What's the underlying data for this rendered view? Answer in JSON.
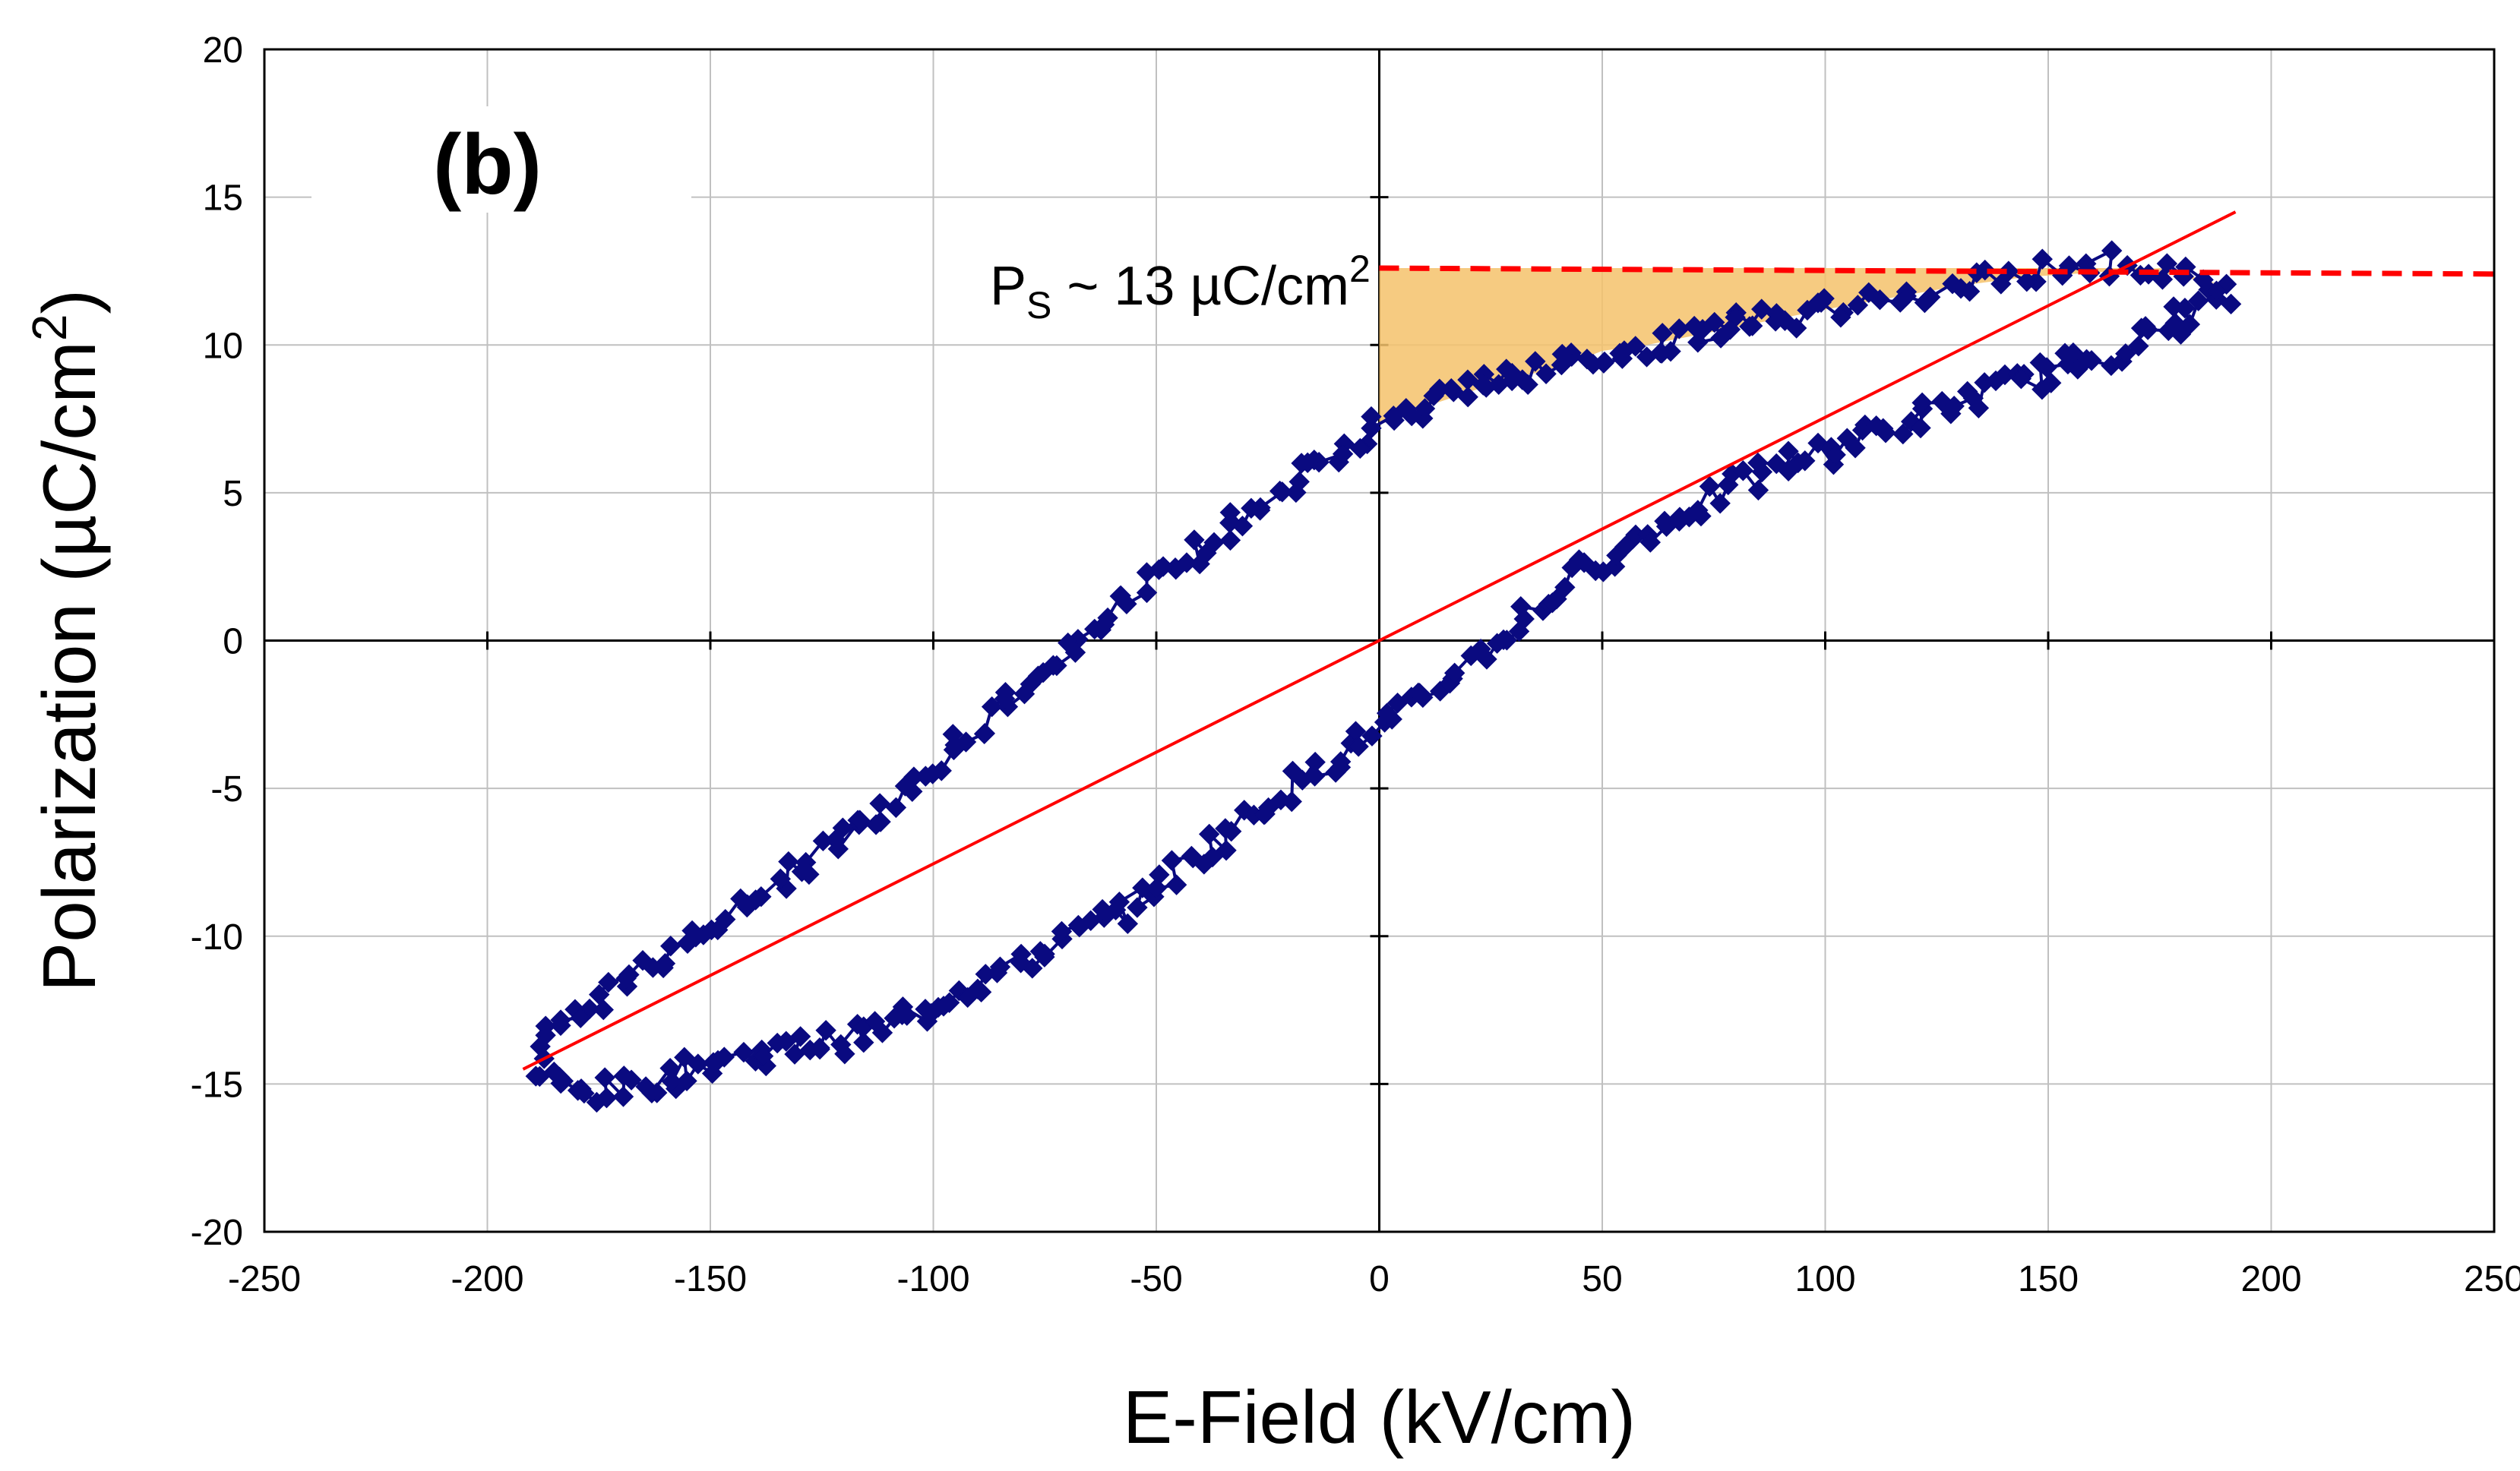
{
  "chart_data": {
    "type": "scatter",
    "title": "",
    "panel_label": "(b)",
    "xlabel": "E-Field (kV/cm)",
    "ylabel": "Polarization (µC/cm²)",
    "ylabel_parts": {
      "main": "Polarization (µC/cm",
      "sup": "2",
      "end": ")"
    },
    "xlim": [
      -250,
      250
    ],
    "ylim": [
      -20,
      20
    ],
    "x_ticks": [
      -250,
      -200,
      -150,
      -100,
      -50,
      0,
      50,
      100,
      150,
      200,
      250
    ],
    "y_ticks": [
      -20,
      -15,
      -10,
      -5,
      0,
      5,
      10,
      15,
      20
    ],
    "grid": true,
    "legend": "none",
    "colors": {
      "loop": "#0a0a80",
      "fit_line": "#ff0000",
      "saturation_line": "#ff0000",
      "shaded_area": "#f5c26b",
      "grid": "#c0c0c0"
    },
    "series": [
      {
        "kind": "hysteresis-loop-upper-branch",
        "x": [
          190,
          175,
          160,
          145,
          130,
          115,
          100,
          90,
          80,
          70,
          60,
          50,
          40,
          30,
          20,
          10,
          0,
          -10,
          -20,
          -30,
          -40,
          -50,
          -60,
          -70,
          -80,
          -90,
          -100,
          -110,
          -120,
          -130,
          -140,
          -150,
          -160,
          -170,
          -180,
          -190
        ],
        "y": [
          12.0,
          12.6,
          12.8,
          12.3,
          12.0,
          11.6,
          11.2,
          10.9,
          10.6,
          10.3,
          10.0,
          9.8,
          9.2,
          8.9,
          8.4,
          7.9,
          7.3,
          6.3,
          5.3,
          4.3,
          3.2,
          2.1,
          0.9,
          -0.5,
          -1.7,
          -3.0,
          -4.2,
          -5.5,
          -6.6,
          -7.7,
          -8.8,
          -9.8,
          -10.7,
          -11.6,
          -12.6,
          -14.0
        ]
      },
      {
        "kind": "hysteresis-loop-lower-branch",
        "x": [
          -190,
          -180,
          -170,
          -160,
          -150,
          -140,
          -130,
          -120,
          -110,
          -100,
          -90,
          -80,
          -70,
          -60,
          -50,
          -40,
          -30,
          -20,
          -10,
          0,
          10,
          20,
          30,
          40,
          50,
          60,
          70,
          80,
          90,
          100,
          110,
          120,
          130,
          140,
          150,
          160,
          170,
          180,
          190
        ],
        "y": [
          -14.5,
          -15.3,
          -15.2,
          -14.8,
          -14.3,
          -14.0,
          -13.7,
          -13.5,
          -13.0,
          -12.3,
          -11.6,
          -10.9,
          -10.1,
          -9.3,
          -8.3,
          -7.2,
          -6.1,
          -5.0,
          -3.9,
          -3.0,
          -2.0,
          -0.7,
          0.5,
          1.7,
          2.8,
          3.6,
          4.4,
          5.2,
          5.9,
          6.4,
          7.0,
          7.5,
          8.0,
          8.6,
          9.1,
          9.5,
          10.2,
          10.9,
          11.6
        ]
      },
      {
        "kind": "linear-fit",
        "x": [
          -192,
          192
        ],
        "y": [
          -14.5,
          14.5
        ]
      },
      {
        "kind": "saturation-level",
        "x": [
          0,
          250
        ],
        "y": [
          12.6,
          12.4
        ]
      }
    ],
    "annotations": [
      {
        "text_main": "P",
        "text_sub": "S",
        "text_rest": " ~ 13 µC/cm",
        "text_sup": "2",
        "x": -2,
        "y": 12.6
      }
    ]
  }
}
